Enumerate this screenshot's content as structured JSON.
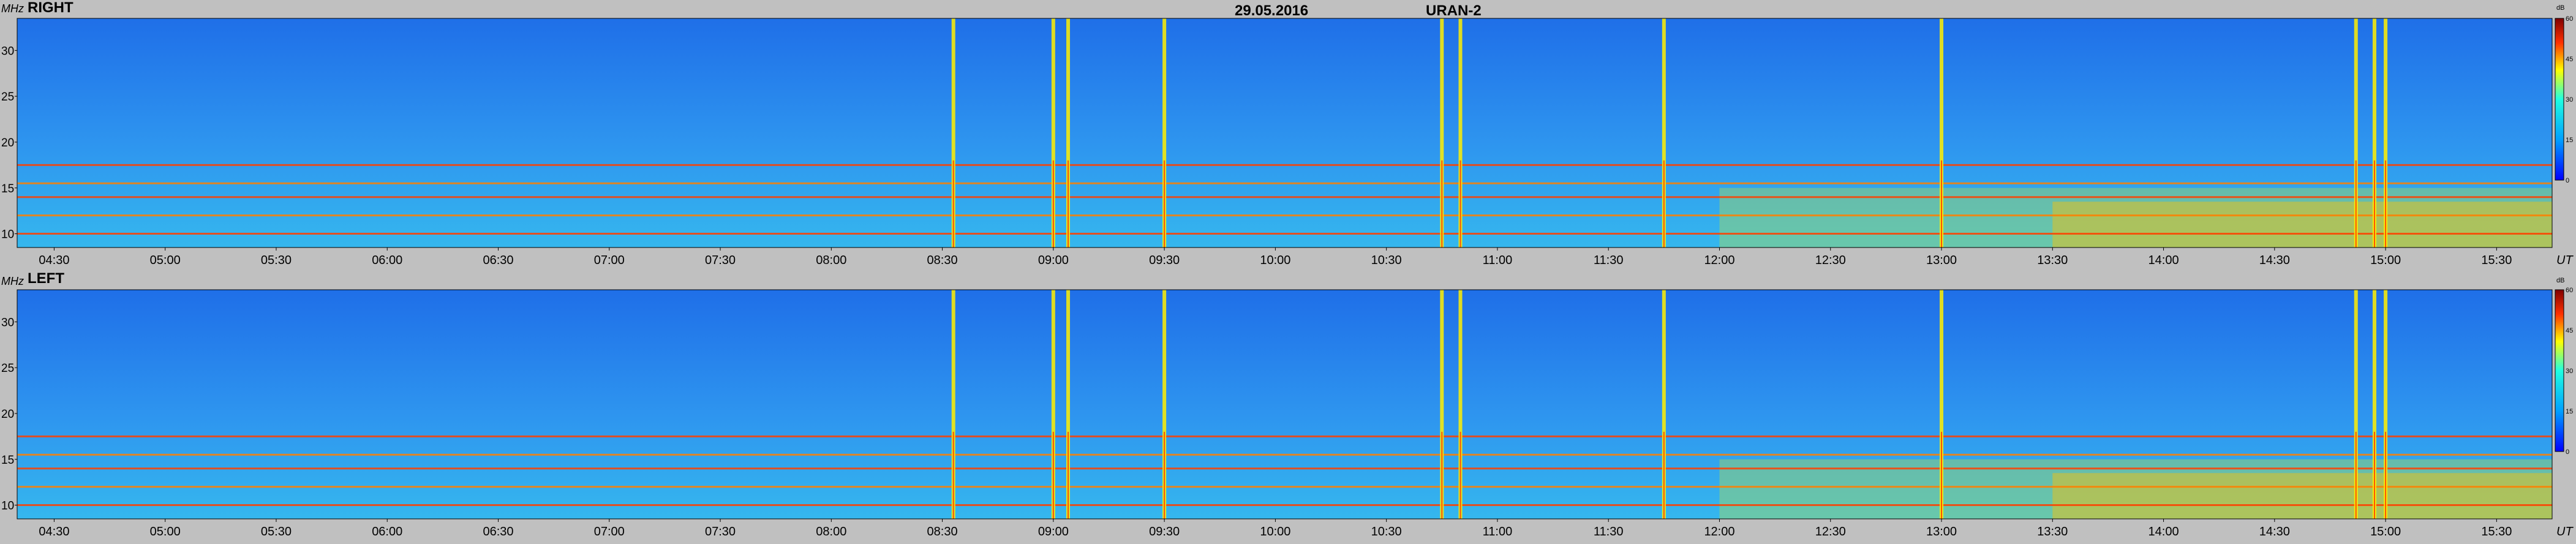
{
  "header": {
    "date": "29.05.2016",
    "instrument": "URAN-2"
  },
  "chart_data": [
    {
      "type": "heatmap",
      "panel": "RIGHT",
      "ylabel": "MHz",
      "xlabel": "UT",
      "yticks": [
        10,
        15,
        20,
        25,
        30
      ],
      "ylim": [
        8.5,
        33.5
      ],
      "xticks": [
        "04:30",
        "05:00",
        "05:30",
        "06:00",
        "06:30",
        "07:00",
        "07:30",
        "08:00",
        "08:30",
        "09:00",
        "09:30",
        "10:00",
        "10:30",
        "11:00",
        "11:30",
        "12:00",
        "12:30",
        "13:00",
        "13:30",
        "14:00",
        "14:30",
        "15:00",
        "15:30"
      ],
      "xlim": [
        "04:20",
        "15:45"
      ],
      "colorbar": {
        "unit": "dB",
        "ticks": [
          0,
          15,
          30,
          45,
          60
        ]
      },
      "bright_bursts_ut": [
        "08:33",
        "09:00",
        "09:04",
        "09:30",
        "10:45",
        "10:50",
        "11:45",
        "13:00",
        "14:52",
        "14:57",
        "15:00"
      ],
      "interference_bands_mhz": [
        10.0,
        12.0,
        14.0,
        15.5,
        17.5
      ]
    },
    {
      "type": "heatmap",
      "panel": "LEFT",
      "ylabel": "MHz",
      "xlabel": "UT",
      "yticks": [
        10,
        15,
        20,
        25,
        30
      ],
      "ylim": [
        8.5,
        33.5
      ],
      "xticks": [
        "04:30",
        "05:00",
        "05:30",
        "06:00",
        "06:30",
        "07:00",
        "07:30",
        "08:00",
        "08:30",
        "09:00",
        "09:30",
        "10:00",
        "10:30",
        "11:00",
        "11:30",
        "12:00",
        "12:30",
        "13:00",
        "13:30",
        "14:00",
        "14:30",
        "15:00",
        "15:30"
      ],
      "xlim": [
        "04:20",
        "15:45"
      ],
      "colorbar": {
        "unit": "dB",
        "ticks": [
          0,
          15,
          30,
          45,
          60
        ]
      },
      "bright_bursts_ut": [
        "08:33",
        "09:00",
        "09:04",
        "09:30",
        "10:45",
        "10:50",
        "11:45",
        "13:00",
        "14:52",
        "14:57",
        "15:00"
      ],
      "interference_bands_mhz": [
        10.0,
        12.0,
        14.0,
        15.5,
        17.5
      ]
    }
  ]
}
